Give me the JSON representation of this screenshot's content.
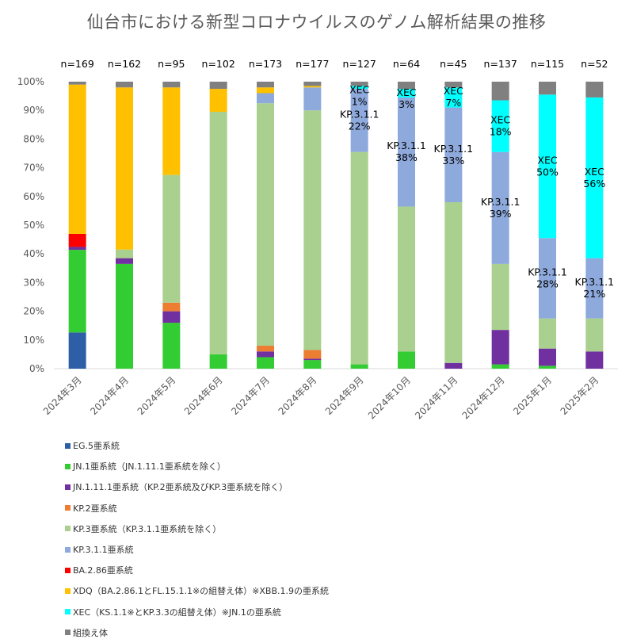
{
  "chart_data": {
    "type": "bar",
    "stacked": "percent",
    "title": "仙台市における新型コロナウイルスのゲノム解析結果の推移",
    "categories": [
      "2024年3月",
      "2024年4月",
      "2024年5月",
      "2024年6月",
      "2024年7月",
      "2024年8月",
      "2024年9月",
      "2024年10月",
      "2024年11月",
      "2024年12月",
      "2025年1月",
      "2025年2月"
    ],
    "n_labels": [
      "n=169",
      "n=162",
      "n=95",
      "n=102",
      "n=173",
      "n=177",
      "n=127",
      "n=64",
      "n=45",
      "n=137",
      "n=115",
      "n=52"
    ],
    "ylim": [
      0,
      100
    ],
    "y_ticks": [
      0,
      10,
      20,
      30,
      40,
      50,
      60,
      70,
      80,
      90,
      100
    ],
    "y_tick_suffix": "%",
    "grid": false,
    "legend_position": "bottom",
    "series": [
      {
        "name": "EG.5亜系統",
        "color": "#2E5FA6",
        "values": [
          12.5,
          0,
          0,
          0,
          0,
          0,
          0,
          0,
          0,
          0,
          0,
          0
        ]
      },
      {
        "name": "JN.1亜系統（JN.1.11.1亜系統を除く）",
        "color": "#33CC33",
        "values": [
          28.5,
          36.5,
          16,
          5,
          4,
          3,
          1.5,
          6,
          0,
          1.5,
          1,
          0
        ]
      },
      {
        "name": "JN.1.11.1亜系統（KP.2亜系統及びKP.3亜系統を除く）",
        "color": "#7030A0",
        "values": [
          1,
          2,
          4,
          0,
          2,
          0.5,
          0,
          0,
          2,
          12,
          6,
          6
        ]
      },
      {
        "name": "KP.2亜系統",
        "color": "#ED7D31",
        "values": [
          0,
          0,
          3,
          0,
          2,
          3,
          0,
          0,
          0,
          0,
          0,
          0
        ]
      },
      {
        "name": "KP.3亜系統（KP.3.1.1亜系統を除く）",
        "color": "#A9D08E",
        "values": [
          0,
          3,
          44.5,
          84.5,
          84.5,
          83.5,
          74,
          50.5,
          56,
          23,
          10.5,
          11.5
        ]
      },
      {
        "name": "KP.3.1.1亜系統",
        "color": "#8EA9DB",
        "values": [
          0,
          0,
          0,
          0,
          3.5,
          8,
          22,
          38,
          33,
          39,
          28,
          21
        ]
      },
      {
        "name": "BA.2.86亜系統",
        "color": "#FF0000",
        "values": [
          4.5,
          0,
          0,
          0,
          0,
          0,
          0,
          0,
          0,
          0,
          0,
          0
        ]
      },
      {
        "name": "XDQ（BA.2.86.1とFL.15.1.1※の組替え体）※XBB.1.9の亜系統",
        "color": "#FFC000",
        "values": [
          51.5,
          56.5,
          30.5,
          8,
          2,
          0.5,
          0,
          0,
          0,
          0,
          0,
          0
        ]
      },
      {
        "name": "XEC（KS.1.1※とKP.3.3の組替え体）※JN.1の亜系統",
        "color": "#00FFFF",
        "values": [
          0,
          0,
          0,
          0,
          0,
          0,
          1,
          3,
          7,
          18,
          50,
          56
        ]
      },
      {
        "name": "組換え体",
        "color": "#808080",
        "values": [
          1,
          2,
          2,
          2.5,
          2,
          1.5,
          1.5,
          2.5,
          2,
          6.5,
          4.5,
          5.5
        ]
      }
    ],
    "data_labels": [
      {
        "category": "2024年9月",
        "series": "XEC（KS.1.1※とKP.3.3の組替え体）※JN.1の亜系統",
        "lines": [
          "XEC",
          "1%"
        ]
      },
      {
        "category": "2024年9月",
        "series": "KP.3.1.1亜系統",
        "lines": [
          "KP.3.1.1",
          "22%"
        ]
      },
      {
        "category": "2024年10月",
        "series": "XEC（KS.1.1※とKP.3.3の組替え体）※JN.1の亜系統",
        "lines": [
          "XEC",
          "3%"
        ]
      },
      {
        "category": "2024年10月",
        "series": "KP.3.1.1亜系統",
        "lines": [
          "KP.3.1.1",
          "38%"
        ]
      },
      {
        "category": "2024年11月",
        "series": "XEC（KS.1.1※とKP.3.3の組替え体）※JN.1の亜系統",
        "lines": [
          "XEC",
          "7%"
        ]
      },
      {
        "category": "2024年11月",
        "series": "KP.3.1.1亜系統",
        "lines": [
          "KP.3.1.1",
          "33%"
        ]
      },
      {
        "category": "2024年12月",
        "series": "XEC（KS.1.1※とKP.3.3の組替え体）※JN.1の亜系統",
        "lines": [
          "XEC",
          "18%"
        ]
      },
      {
        "category": "2024年12月",
        "series": "KP.3.1.1亜系統",
        "lines": [
          "KP.3.1.1",
          "39%"
        ]
      },
      {
        "category": "2025年1月",
        "series": "XEC（KS.1.1※とKP.3.3の組替え体）※JN.1の亜系統",
        "lines": [
          "XEC",
          "50%"
        ]
      },
      {
        "category": "2025年1月",
        "series": "KP.3.1.1亜系統",
        "lines": [
          "KP.3.1.1",
          "28%"
        ]
      },
      {
        "category": "2025年2月",
        "series": "XEC（KS.1.1※とKP.3.3の組替え体）※JN.1の亜系統",
        "lines": [
          "XEC",
          "56%"
        ]
      },
      {
        "category": "2025年2月",
        "series": "KP.3.1.1亜系統",
        "lines": [
          "KP.3.1.1",
          "21%"
        ]
      }
    ]
  }
}
